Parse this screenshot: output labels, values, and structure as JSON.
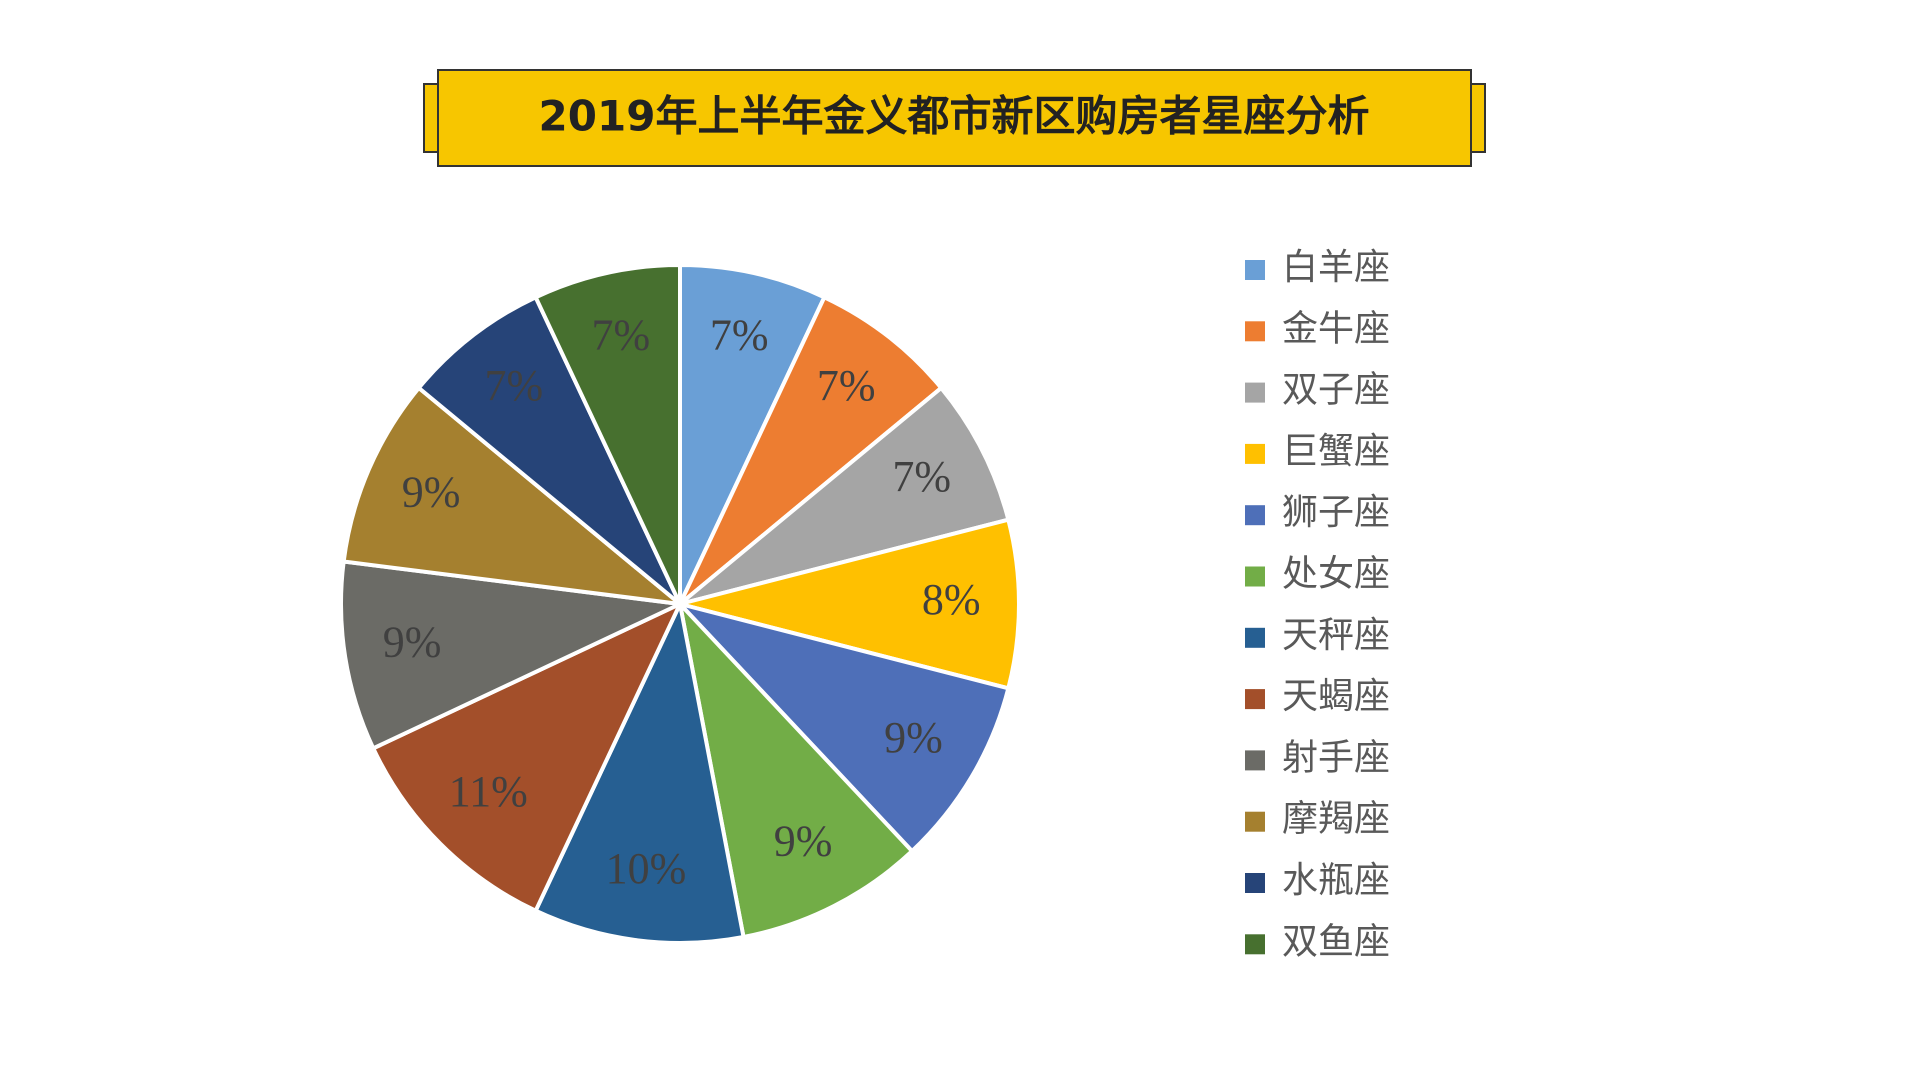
{
  "chart_data": {
    "type": "pie",
    "title": "2019年上半年金义都市新区购房者星座分析",
    "categories": [
      "白羊座",
      "金牛座",
      "双子座",
      "巨蟹座",
      "狮子座",
      "处女座",
      "天秤座",
      "天蝎座",
      "射手座",
      "摩羯座",
      "水瓶座",
      "双鱼座"
    ],
    "values": [
      7,
      7,
      7,
      8,
      9,
      9,
      10,
      11,
      9,
      9,
      7,
      7
    ],
    "value_labels": [
      "7%",
      "7%",
      "7%",
      "8%",
      "9%",
      "9%",
      "10%",
      "11%",
      "9%",
      "9%",
      "7%",
      "7%"
    ],
    "colors": [
      "#6a9fd6",
      "#ed7d31",
      "#a5a5a5",
      "#ffc000",
      "#4e6fb8",
      "#72ad47",
      "#265f92",
      "#a34f2a",
      "#6b6b66",
      "#a5802f",
      "#264478",
      "#47702f"
    ],
    "legend": "right"
  }
}
